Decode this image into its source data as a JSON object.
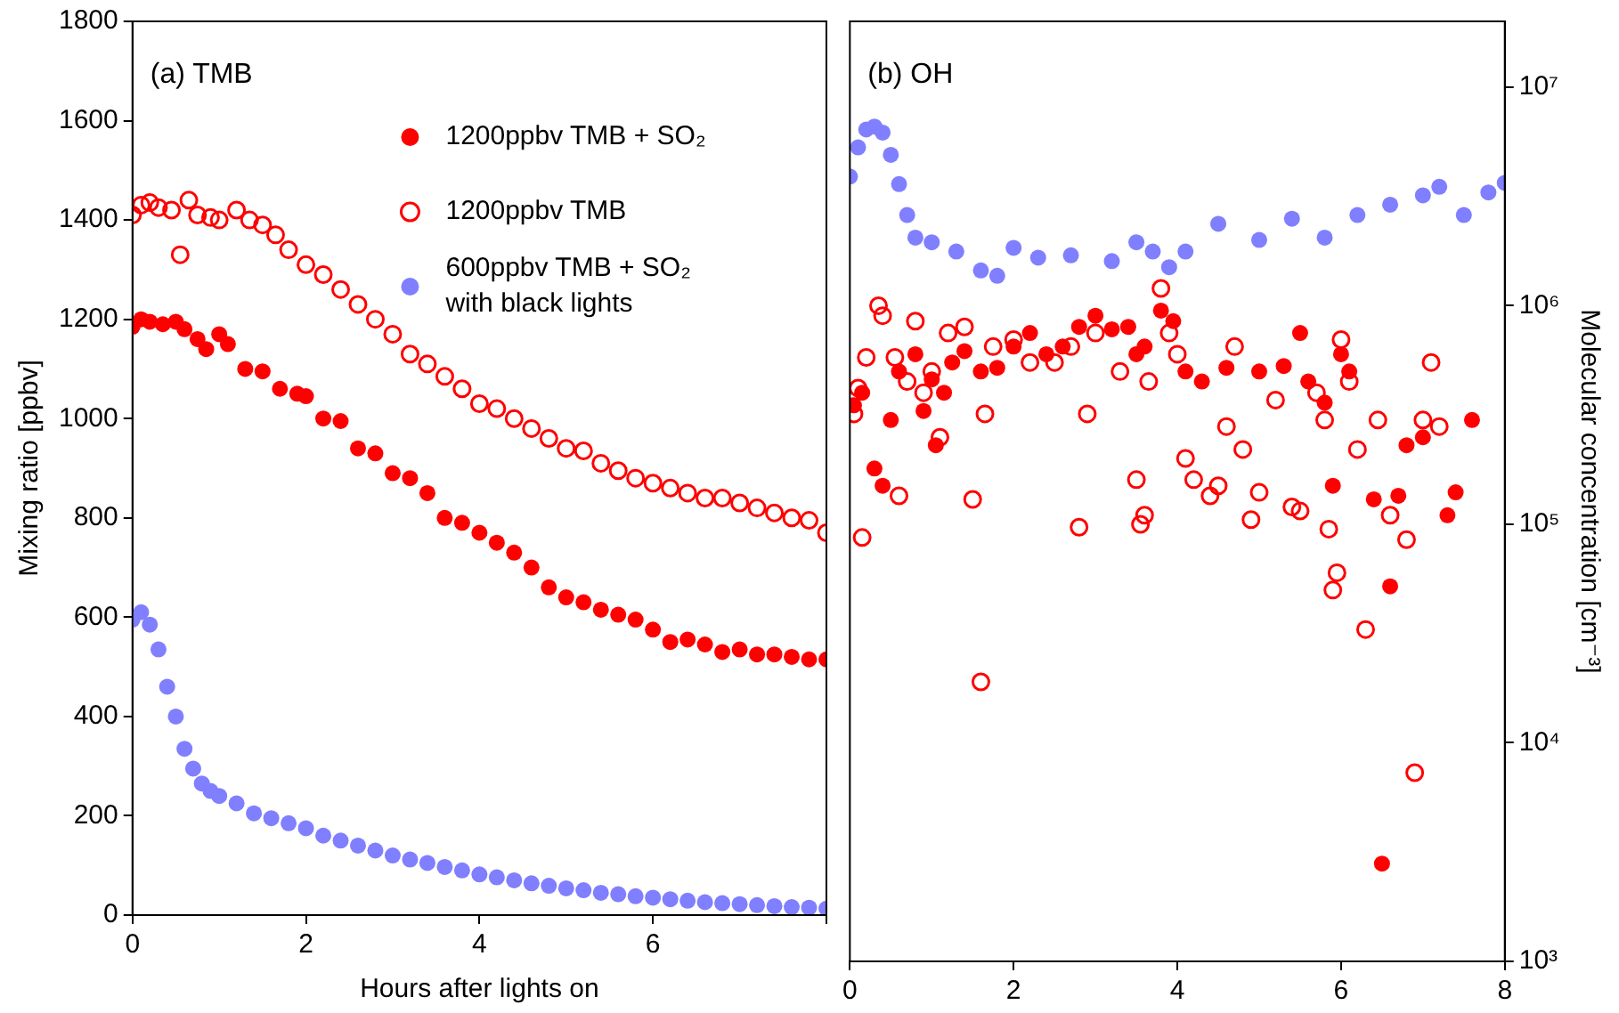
{
  "chart_data": [
    {
      "type": "scatter",
      "title": "(a) TMB",
      "xlabel": "Hours after lights on",
      "ylabel": "Mixing ratio [ppbv]",
      "xlim": [
        0,
        8
      ],
      "xticks": [
        0,
        2,
        4,
        6,
        {
          "value": 8,
          "label": null
        }
      ],
      "ylim": [
        0,
        1800
      ],
      "yticks": [
        0,
        200,
        400,
        600,
        800,
        1000,
        1200,
        1400,
        1600,
        1800
      ],
      "grid": false,
      "legend": "top right",
      "marker": "circle",
      "series": [
        {
          "name": "1200ppbv TMB + SO₂",
          "color": "#ff0000",
          "x": [
            0,
            0.1,
            0.2,
            0.35,
            0.5,
            0.6,
            0.75,
            0.85,
            1.0,
            1.1,
            1.3,
            1.5,
            1.7,
            1.9,
            2.0,
            2.2,
            2.4,
            2.6,
            2.8,
            3.0,
            3.2,
            3.4,
            3.6,
            3.8,
            4.0,
            4.2,
            4.4,
            4.6,
            4.8,
            5.0,
            5.2,
            5.4,
            5.6,
            5.8,
            6.0,
            6.2,
            6.4,
            6.6,
            6.8,
            7.0,
            7.2,
            7.4,
            7.6,
            7.8,
            8.0
          ],
          "values": [
            1185,
            1200,
            1195,
            1190,
            1195,
            1180,
            1160,
            1140,
            1170,
            1150,
            1100,
            1095,
            1060,
            1050,
            1045,
            1000,
            995,
            940,
            930,
            890,
            880,
            850,
            800,
            790,
            770,
            750,
            730,
            700,
            660,
            640,
            630,
            615,
            605,
            595,
            575,
            550,
            555,
            545,
            530,
            535,
            525,
            525,
            520,
            515,
            515
          ]
        },
        {
          "name": "1200ppbv TMB",
          "color": "#ff0000",
          "marker": "open circle",
          "x": [
            0,
            0.1,
            0.2,
            0.3,
            0.45,
            0.55,
            0.65,
            0.75,
            0.9,
            1.0,
            1.2,
            1.35,
            1.5,
            1.65,
            1.8,
            2.0,
            2.2,
            2.4,
            2.6,
            2.8,
            3.0,
            3.2,
            3.4,
            3.6,
            3.8,
            4.0,
            4.2,
            4.4,
            4.6,
            4.8,
            5.0,
            5.2,
            5.4,
            5.6,
            5.8,
            6.0,
            6.2,
            6.4,
            6.6,
            6.8,
            7.0,
            7.2,
            7.4,
            7.6,
            7.8,
            8.0
          ],
          "values": [
            1410,
            1430,
            1435,
            1425,
            1420,
            1330,
            1440,
            1410,
            1405,
            1400,
            1420,
            1400,
            1390,
            1370,
            1340,
            1310,
            1290,
            1260,
            1230,
            1200,
            1170,
            1130,
            1110,
            1085,
            1060,
            1030,
            1020,
            1000,
            980,
            960,
            940,
            935,
            910,
            895,
            880,
            870,
            860,
            850,
            840,
            840,
            830,
            820,
            810,
            800,
            795,
            770
          ]
        },
        {
          "name": "600ppbv TMB + SO₂ with black lights",
          "color": "#7f7fff",
          "x": [
            0,
            0.1,
            0.2,
            0.3,
            0.4,
            0.5,
            0.6,
            0.7,
            0.8,
            0.9,
            1.0,
            1.2,
            1.4,
            1.6,
            1.8,
            2.0,
            2.2,
            2.4,
            2.6,
            2.8,
            3.0,
            3.2,
            3.4,
            3.6,
            3.8,
            4.0,
            4.2,
            4.4,
            4.6,
            4.8,
            5.0,
            5.2,
            5.4,
            5.6,
            5.8,
            6.0,
            6.2,
            6.4,
            6.6,
            6.8,
            7.0,
            7.2,
            7.4,
            7.6,
            7.8,
            8.0
          ],
          "values": [
            595,
            610,
            585,
            535,
            460,
            400,
            335,
            295,
            265,
            250,
            240,
            225,
            205,
            195,
            185,
            175,
            160,
            150,
            140,
            130,
            120,
            112,
            105,
            97,
            90,
            82,
            76,
            70,
            64,
            59,
            54,
            50,
            45,
            42,
            38,
            35,
            32,
            29,
            26,
            24,
            22,
            20,
            18,
            16,
            15,
            13
          ]
        }
      ]
    },
    {
      "type": "scatter",
      "title": "(b) OH",
      "y2label": "Molecular concentration [cm⁻³]",
      "xlim": [
        0,
        8
      ],
      "xticks": [
        0,
        2,
        4,
        6,
        8
      ],
      "log": "y2",
      "y2lim": [
        1000,
        20000000
      ],
      "y2ticks": [
        {
          "value": 1000,
          "label": "10³"
        },
        {
          "value": 10000,
          "label": "10⁴"
        },
        {
          "value": 100000,
          "label": "10⁵"
        },
        {
          "value": 1000000,
          "label": "10⁶"
        },
        {
          "value": 10000000,
          "label": "10⁷"
        }
      ],
      "grid": false,
      "legend": false,
      "marker": "circle",
      "series": [
        {
          "color": "#ff0000",
          "axis": "y2",
          "x": [
            0.05,
            0.15,
            0.3,
            0.4,
            0.5,
            0.6,
            0.8,
            0.9,
            1.0,
            1.05,
            1.15,
            1.25,
            1.4,
            1.6,
            1.8,
            2.0,
            2.2,
            2.4,
            2.6,
            2.8,
            3.0,
            3.2,
            3.4,
            3.5,
            3.6,
            3.8,
            3.95,
            4.1,
            4.3,
            4.6,
            5.0,
            5.3,
            5.5,
            5.6,
            5.8,
            5.9,
            6.0,
            6.1,
            6.4,
            6.5,
            6.6,
            6.7,
            6.8,
            7.0,
            7.3,
            7.4,
            7.6
          ],
          "values": [
            350000,
            400000,
            180000,
            150000,
            300000,
            500000,
            600000,
            330000,
            460000,
            230000,
            400000,
            550000,
            620000,
            500000,
            520000,
            650000,
            750000,
            600000,
            650000,
            800000,
            900000,
            780000,
            800000,
            600000,
            650000,
            950000,
            850000,
            500000,
            450000,
            520000,
            500000,
            530000,
            750000,
            450000,
            360000,
            150000,
            600000,
            500000,
            130000,
            2800,
            52000,
            135000,
            230000,
            250000,
            110000,
            140000,
            300000
          ]
        },
        {
          "color": "#ff0000",
          "marker": "open circle",
          "axis": "y2",
          "x": [
            0.05,
            0.1,
            0.15,
            0.2,
            0.35,
            0.4,
            0.55,
            0.6,
            0.7,
            0.8,
            0.9,
            1.0,
            1.1,
            1.2,
            1.4,
            1.5,
            1.6,
            1.65,
            1.75,
            2.0,
            2.2,
            2.5,
            2.7,
            2.8,
            2.9,
            3.0,
            3.3,
            3.5,
            3.55,
            3.6,
            3.65,
            3.8,
            3.9,
            4.0,
            4.1,
            4.2,
            4.4,
            4.5,
            4.6,
            4.7,
            4.8,
            4.9,
            5.0,
            5.2,
            5.4,
            5.5,
            5.7,
            5.8,
            5.85,
            5.9,
            5.95,
            6.0,
            6.1,
            6.2,
            6.3,
            6.45,
            6.6,
            6.8,
            6.9,
            7.0,
            7.1,
            7.2
          ],
          "values": [
            320000,
            420000,
            87000,
            580000,
            1000000,
            900000,
            580000,
            135000,
            450000,
            850000,
            400000,
            500000,
            250000,
            750000,
            800000,
            130000,
            19000,
            320000,
            650000,
            700000,
            550000,
            550000,
            650000,
            97000,
            320000,
            750000,
            500000,
            160000,
            100000,
            110000,
            450000,
            1200000,
            750000,
            600000,
            200000,
            160000,
            135000,
            150000,
            280000,
            650000,
            220000,
            105000,
            140000,
            370000,
            120000,
            115000,
            400000,
            300000,
            95000,
            50000,
            60000,
            700000,
            450000,
            220000,
            33000,
            300000,
            110000,
            85000,
            7300,
            300000,
            550000,
            280000
          ]
        },
        {
          "color": "#7f7fff",
          "axis": "y2",
          "x": [
            0,
            0.1,
            0.2,
            0.3,
            0.4,
            0.5,
            0.6,
            0.7,
            0.8,
            1.0,
            1.3,
            1.6,
            1.8,
            2.0,
            2.3,
            2.7,
            3.2,
            3.5,
            3.7,
            3.9,
            4.1,
            4.5,
            5.0,
            5.4,
            5.8,
            6.2,
            6.6,
            7.0,
            7.2,
            7.5,
            7.8,
            8.0
          ],
          "values": [
            3900000,
            5300000,
            6400000,
            6600000,
            6200000,
            4900000,
            3600000,
            2600000,
            2050000,
            1950000,
            1770000,
            1450000,
            1370000,
            1840000,
            1660000,
            1700000,
            1600000,
            1950000,
            1770000,
            1500000,
            1770000,
            2370000,
            2000000,
            2500000,
            2050000,
            2600000,
            2900000,
            3200000,
            3500000,
            2600000,
            3300000,
            3650000
          ]
        }
      ]
    }
  ]
}
